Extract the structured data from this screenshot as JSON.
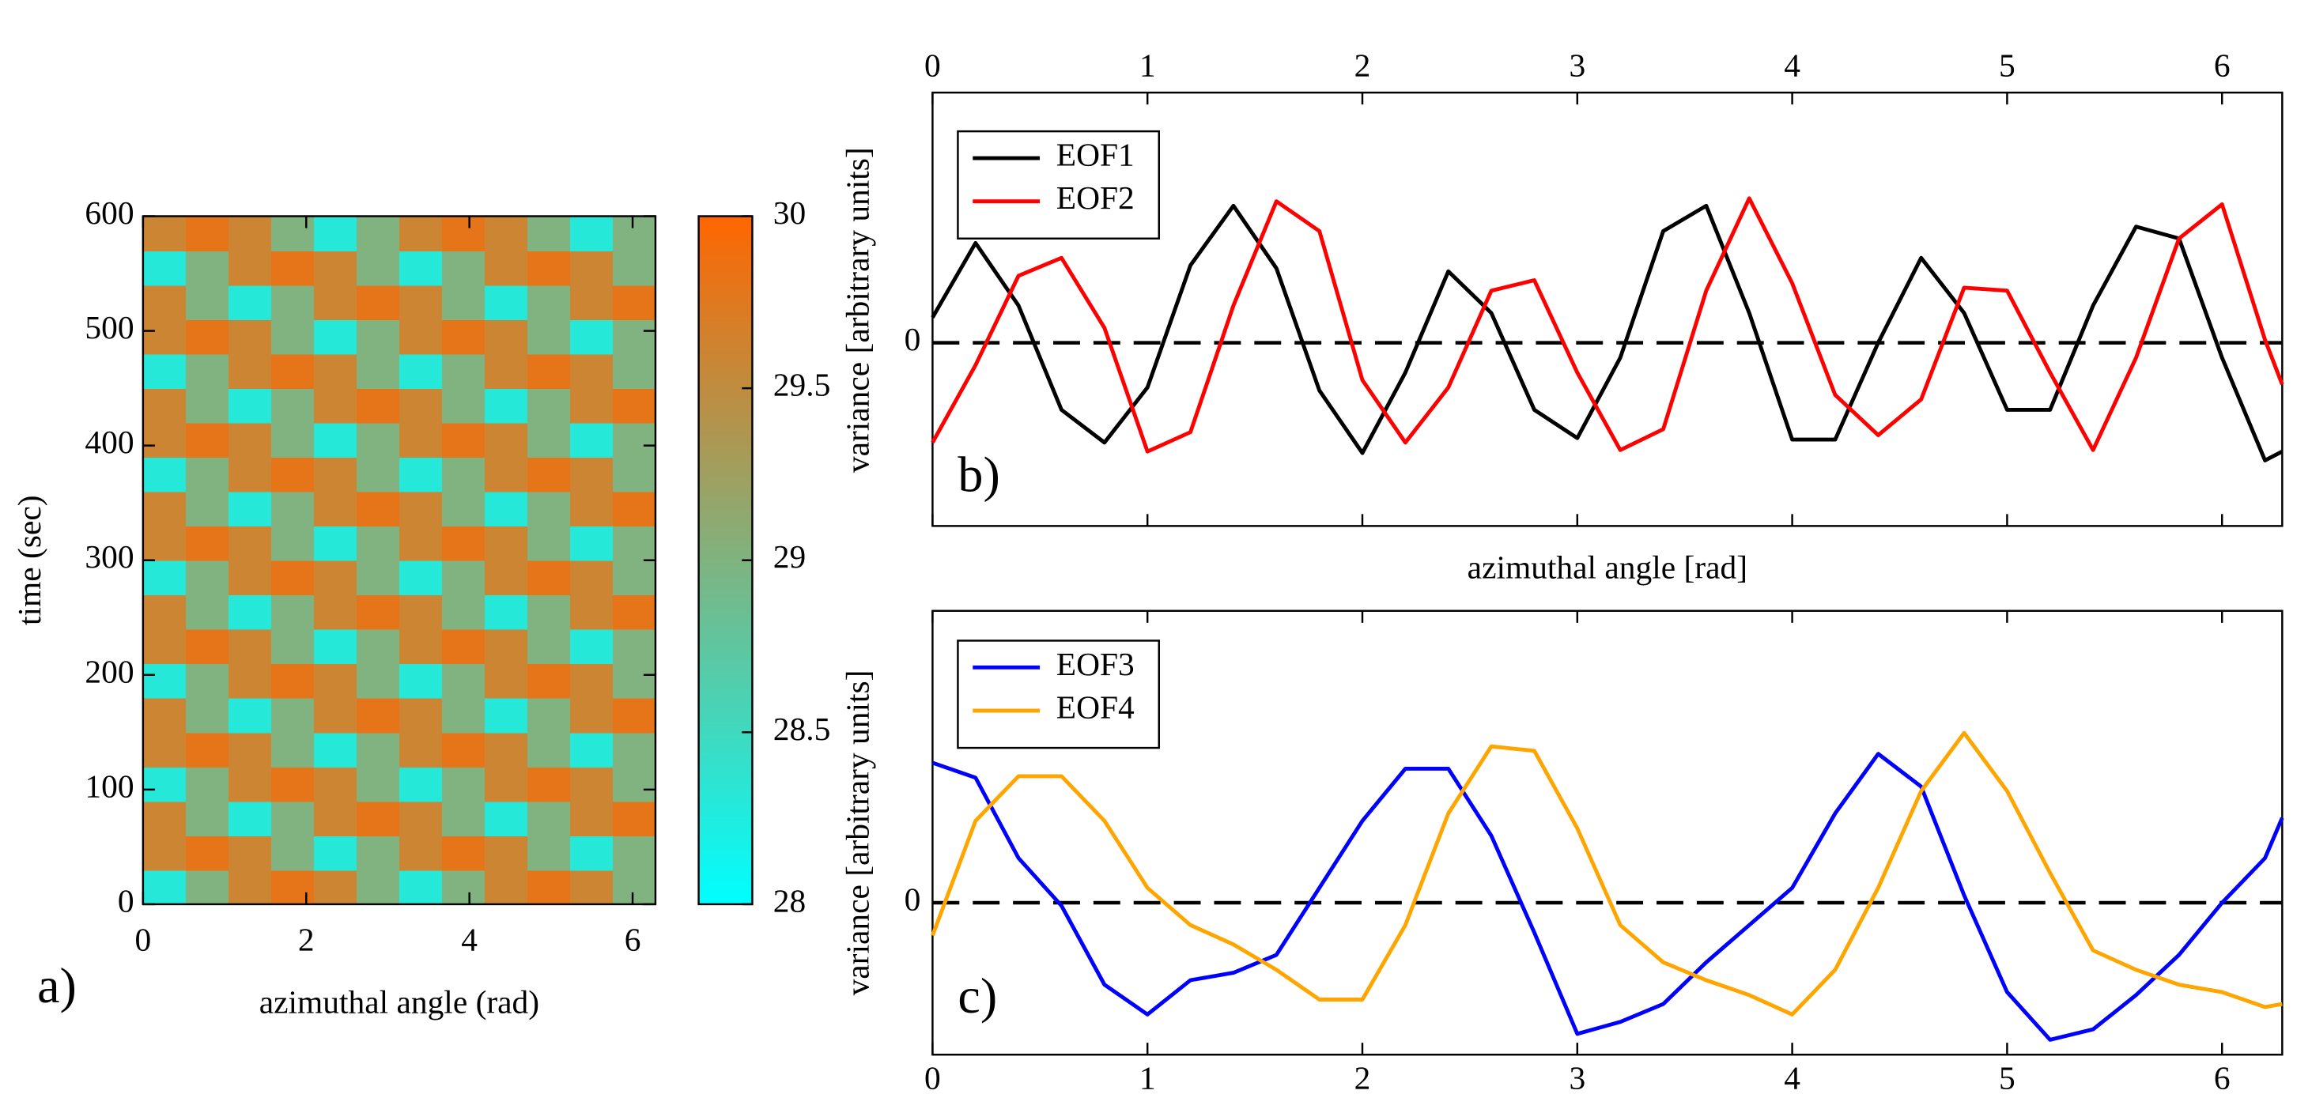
{
  "chart_data": [
    {
      "type": "heatmap",
      "panel_label": "a)",
      "xlabel": "azimuthal angle (rad)",
      "ylabel": "time (sec)",
      "xlim": [
        0,
        6.28
      ],
      "ylim": [
        0,
        600
      ],
      "xticks": [
        0,
        2,
        4,
        6
      ],
      "yticks": [
        0,
        100,
        200,
        300,
        400,
        500,
        600
      ],
      "clim": [
        28,
        30
      ],
      "cticks": [
        28,
        28.5,
        29,
        29.5,
        30
      ],
      "colormap": [
        "#00ffff",
        "#ff6600"
      ],
      "z": [
        [
          28.3,
          29.0,
          29.6,
          29.8,
          29.6,
          29.0,
          28.3,
          29.0,
          29.6,
          29.8,
          29.6,
          29.0
        ],
        [
          29.6,
          29.8,
          29.6,
          29.0,
          28.3,
          29.0,
          29.6,
          29.8,
          29.6,
          29.0,
          28.3,
          29.0
        ],
        [
          29.6,
          29.0,
          28.3,
          29.0,
          29.6,
          29.8,
          29.6,
          29.0,
          28.3,
          29.0,
          29.6,
          29.8
        ],
        [
          28.3,
          29.0,
          29.6,
          29.8,
          29.6,
          29.0,
          28.3,
          29.0,
          29.6,
          29.8,
          29.6,
          29.0
        ],
        [
          29.6,
          29.8,
          29.6,
          29.0,
          28.3,
          29.0,
          29.6,
          29.8,
          29.6,
          29.0,
          28.3,
          29.0
        ],
        [
          29.6,
          29.0,
          28.3,
          29.0,
          29.6,
          29.8,
          29.6,
          29.0,
          28.3,
          29.0,
          29.6,
          29.8
        ],
        [
          28.3,
          29.0,
          29.6,
          29.8,
          29.6,
          29.0,
          28.3,
          29.0,
          29.6,
          29.8,
          29.6,
          29.0
        ],
        [
          29.6,
          29.8,
          29.6,
          29.0,
          28.3,
          29.0,
          29.6,
          29.8,
          29.6,
          29.0,
          28.3,
          29.0
        ],
        [
          29.6,
          29.0,
          28.3,
          29.0,
          29.6,
          29.8,
          29.6,
          29.0,
          28.3,
          29.0,
          29.6,
          29.8
        ],
        [
          28.3,
          29.0,
          29.6,
          29.8,
          29.6,
          29.0,
          28.3,
          29.0,
          29.6,
          29.8,
          29.6,
          29.0
        ],
        [
          29.6,
          29.8,
          29.6,
          29.0,
          28.3,
          29.0,
          29.6,
          29.8,
          29.6,
          29.0,
          28.3,
          29.0
        ],
        [
          29.6,
          29.0,
          28.3,
          29.0,
          29.6,
          29.8,
          29.6,
          29.0,
          28.3,
          29.0,
          29.6,
          29.8
        ],
        [
          28.3,
          29.0,
          29.6,
          29.8,
          29.6,
          29.0,
          28.3,
          29.0,
          29.6,
          29.8,
          29.6,
          29.0
        ],
        [
          29.6,
          29.8,
          29.6,
          29.0,
          28.3,
          29.0,
          29.6,
          29.8,
          29.6,
          29.0,
          28.3,
          29.0
        ],
        [
          29.6,
          29.0,
          28.3,
          29.0,
          29.6,
          29.8,
          29.6,
          29.0,
          28.3,
          29.0,
          29.6,
          29.8
        ],
        [
          28.3,
          29.0,
          29.6,
          29.8,
          29.6,
          29.0,
          28.3,
          29.0,
          29.6,
          29.8,
          29.6,
          29.0
        ],
        [
          29.6,
          29.8,
          29.6,
          29.0,
          28.3,
          29.0,
          29.6,
          29.8,
          29.6,
          29.0,
          28.3,
          29.0
        ],
        [
          29.6,
          29.0,
          28.3,
          29.0,
          29.6,
          29.8,
          29.6,
          29.0,
          28.3,
          29.0,
          29.6,
          29.8
        ],
        [
          28.3,
          29.0,
          29.6,
          29.8,
          29.6,
          29.0,
          28.3,
          29.0,
          29.6,
          29.8,
          29.6,
          29.0
        ],
        [
          29.6,
          29.8,
          29.6,
          29.0,
          28.3,
          29.0,
          29.6,
          29.8,
          29.6,
          29.0,
          28.3,
          29.0
        ]
      ]
    },
    {
      "type": "line",
      "panel_label": "b)",
      "xlabel": "azimuthal angle [rad]",
      "ylabel": "variance  [arbitrary units]",
      "xaxis_position": "top",
      "zero_line": true,
      "legend": "upper left",
      "xlim": [
        0,
        6.28
      ],
      "ylim": [
        -1.23,
        1.68
      ],
      "xticks": [
        0,
        1,
        2,
        3,
        4,
        5,
        6
      ],
      "yticks": [
        0
      ],
      "x": [
        0,
        0.2,
        0.4,
        0.6,
        0.8,
        1.0,
        1.2,
        1.4,
        1.6,
        1.8,
        2.0,
        2.2,
        2.4,
        2.6,
        2.8,
        3.0,
        3.2,
        3.4,
        3.6,
        3.8,
        4.0,
        4.2,
        4.4,
        4.6,
        4.8,
        5.0,
        5.2,
        5.4,
        5.6,
        5.8,
        6.0,
        6.2,
        6.28
      ],
      "series": [
        {
          "name": "EOF1",
          "color": "#000000",
          "values": [
            0.17,
            0.67,
            0.25,
            -0.45,
            -0.67,
            -0.3,
            0.52,
            0.92,
            0.5,
            -0.32,
            -0.74,
            -0.2,
            0.48,
            0.2,
            -0.45,
            -0.64,
            -0.1,
            0.75,
            0.92,
            0.2,
            -0.65,
            -0.65,
            0.0,
            0.57,
            0.2,
            -0.45,
            -0.45,
            0.25,
            0.78,
            0.7,
            -0.1,
            -0.79,
            -0.73
          ]
        },
        {
          "name": "EOF2",
          "color": "#ff0000",
          "values": [
            -0.67,
            -0.15,
            0.45,
            0.57,
            0.1,
            -0.73,
            -0.6,
            0.25,
            0.95,
            0.75,
            -0.25,
            -0.67,
            -0.3,
            0.35,
            0.42,
            -0.2,
            -0.72,
            -0.58,
            0.35,
            0.97,
            0.4,
            -0.35,
            -0.62,
            -0.38,
            0.37,
            0.35,
            -0.2,
            -0.72,
            -0.1,
            0.7,
            0.93,
            0.02,
            -0.28
          ]
        }
      ]
    },
    {
      "type": "line",
      "panel_label": "c)",
      "ylabel": "variance [arbitrary units]",
      "xaxis_position": "bottom",
      "zero_line": true,
      "legend": "upper left",
      "xlim": [
        0,
        6.28
      ],
      "ylim": [
        -1.02,
        1.96
      ],
      "xticks": [
        0,
        1,
        2,
        3,
        4,
        5,
        6
      ],
      "yticks": [
        0
      ],
      "x": [
        0,
        0.2,
        0.4,
        0.6,
        0.8,
        1.0,
        1.2,
        1.4,
        1.6,
        1.8,
        2.0,
        2.2,
        2.4,
        2.6,
        2.8,
        3.0,
        3.2,
        3.4,
        3.6,
        3.8,
        4.0,
        4.2,
        4.4,
        4.6,
        4.8,
        5.0,
        5.2,
        5.4,
        5.6,
        5.8,
        6.0,
        6.2,
        6.28
      ],
      "series": [
        {
          "name": "EOF3",
          "color": "#0000ff",
          "values": [
            0.94,
            0.84,
            0.3,
            -0.02,
            -0.55,
            -0.75,
            -0.52,
            -0.47,
            -0.35,
            0.1,
            0.55,
            0.9,
            0.9,
            0.45,
            -0.2,
            -0.88,
            -0.8,
            -0.68,
            -0.4,
            -0.15,
            0.1,
            0.6,
            1.0,
            0.78,
            0.05,
            -0.6,
            -0.92,
            -0.85,
            -0.62,
            -0.35,
            0.0,
            0.3,
            0.57
          ]
        },
        {
          "name": "EOF4",
          "color": "#ffa500",
          "values": [
            -0.22,
            0.55,
            0.85,
            0.85,
            0.55,
            0.1,
            -0.15,
            -0.28,
            -0.45,
            -0.65,
            -0.65,
            -0.15,
            0.6,
            1.05,
            1.02,
            0.5,
            -0.15,
            -0.4,
            -0.52,
            -0.62,
            -0.75,
            -0.45,
            0.1,
            0.75,
            1.14,
            0.75,
            0.2,
            -0.32,
            -0.45,
            -0.55,
            -0.6,
            -0.7,
            -0.68
          ]
        }
      ]
    }
  ]
}
